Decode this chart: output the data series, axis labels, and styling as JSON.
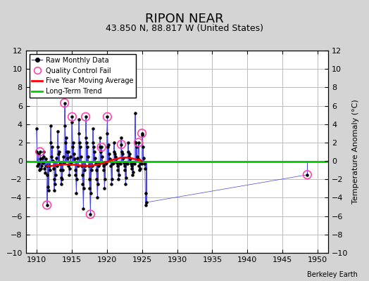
{
  "title": "RIPON NEAR",
  "subtitle": "43.850 N, 88.817 W (United States)",
  "ylabel": "Temperature Anomaly (°C)",
  "xlabel_credit": "Berkeley Earth",
  "xlim": [
    1908.5,
    1951.5
  ],
  "ylim": [
    -10,
    12
  ],
  "yticks": [
    -10,
    -8,
    -6,
    -4,
    -2,
    0,
    2,
    4,
    6,
    8,
    10,
    12
  ],
  "xticks": [
    1910,
    1915,
    1920,
    1925,
    1930,
    1935,
    1940,
    1945,
    1950
  ],
  "bg_color": "#d4d4d4",
  "plot_bg_color": "#ffffff",
  "grid_color": "#bbbbbb",
  "raw_line_color": "#4444dd",
  "raw_marker_color": "#000000",
  "qc_fail_color": "#ff44aa",
  "moving_avg_color": "#ff0000",
  "trend_color": "#00cc00",
  "raw_data": [
    [
      1910.0,
      3.5
    ],
    [
      1910.08,
      1.0
    ],
    [
      1910.17,
      -0.5
    ],
    [
      1910.25,
      0.8
    ],
    [
      1910.33,
      -0.3
    ],
    [
      1910.42,
      -1.0
    ],
    [
      1910.5,
      1.0
    ],
    [
      1910.58,
      0.2
    ],
    [
      1910.67,
      -0.8
    ],
    [
      1910.75,
      -0.5
    ],
    [
      1910.83,
      0.3
    ],
    [
      1910.92,
      -0.2
    ],
    [
      1911.0,
      1.0
    ],
    [
      1911.08,
      0.5
    ],
    [
      1911.17,
      -0.8
    ],
    [
      1911.25,
      -1.3
    ],
    [
      1911.33,
      0.2
    ],
    [
      1911.42,
      -0.5
    ],
    [
      1911.5,
      -4.8
    ],
    [
      1911.58,
      -1.5
    ],
    [
      1911.67,
      -2.8
    ],
    [
      1911.75,
      -3.2
    ],
    [
      1911.83,
      -0.5
    ],
    [
      1911.92,
      -1.0
    ],
    [
      1912.0,
      3.8
    ],
    [
      1912.08,
      2.0
    ],
    [
      1912.17,
      0.5
    ],
    [
      1912.25,
      1.5
    ],
    [
      1912.33,
      0.0
    ],
    [
      1912.42,
      -0.8
    ],
    [
      1912.5,
      -3.2
    ],
    [
      1912.58,
      -2.0
    ],
    [
      1912.67,
      -2.5
    ],
    [
      1912.75,
      -1.5
    ],
    [
      1912.83,
      0.3
    ],
    [
      1912.92,
      -0.5
    ],
    [
      1913.0,
      3.2
    ],
    [
      1913.08,
      1.5
    ],
    [
      1913.17,
      0.8
    ],
    [
      1913.25,
      1.0
    ],
    [
      1913.33,
      -0.3
    ],
    [
      1913.42,
      -1.0
    ],
    [
      1913.5,
      -2.5
    ],
    [
      1913.58,
      -1.8
    ],
    [
      1913.67,
      -2.0
    ],
    [
      1913.75,
      -1.0
    ],
    [
      1913.83,
      0.5
    ],
    [
      1913.92,
      -0.2
    ],
    [
      1914.0,
      6.3
    ],
    [
      1914.08,
      3.8
    ],
    [
      1914.17,
      2.0
    ],
    [
      1914.25,
      2.5
    ],
    [
      1914.33,
      1.0
    ],
    [
      1914.42,
      0.3
    ],
    [
      1914.5,
      1.0
    ],
    [
      1914.58,
      -0.5
    ],
    [
      1914.67,
      -1.5
    ],
    [
      1914.75,
      -0.8
    ],
    [
      1914.83,
      0.5
    ],
    [
      1914.92,
      -0.3
    ],
    [
      1915.0,
      4.2
    ],
    [
      1915.08,
      4.8
    ],
    [
      1915.17,
      1.5
    ],
    [
      1915.25,
      2.0
    ],
    [
      1915.33,
      0.8
    ],
    [
      1915.42,
      0.2
    ],
    [
      1915.5,
      -1.0
    ],
    [
      1915.58,
      -1.5
    ],
    [
      1915.67,
      -3.5
    ],
    [
      1915.75,
      -2.0
    ],
    [
      1915.83,
      0.3
    ],
    [
      1915.92,
      -0.5
    ],
    [
      1916.0,
      4.5
    ],
    [
      1916.08,
      3.0
    ],
    [
      1916.17,
      2.0
    ],
    [
      1916.25,
      1.5
    ],
    [
      1916.33,
      0.5
    ],
    [
      1916.42,
      -0.5
    ],
    [
      1916.5,
      -1.5
    ],
    [
      1916.58,
      -2.5
    ],
    [
      1916.67,
      -5.2
    ],
    [
      1916.75,
      -3.0
    ],
    [
      1916.83,
      -1.0
    ],
    [
      1916.92,
      -0.5
    ],
    [
      1917.0,
      4.8
    ],
    [
      1917.08,
      2.5
    ],
    [
      1917.17,
      2.0
    ],
    [
      1917.25,
      1.5
    ],
    [
      1917.33,
      0.5
    ],
    [
      1917.42,
      -0.5
    ],
    [
      1917.5,
      -2.0
    ],
    [
      1917.58,
      -3.0
    ],
    [
      1917.67,
      -5.8
    ],
    [
      1917.75,
      -3.5
    ],
    [
      1917.83,
      -1.0
    ],
    [
      1917.92,
      -0.5
    ],
    [
      1918.0,
      3.5
    ],
    [
      1918.08,
      2.0
    ],
    [
      1918.17,
      1.5
    ],
    [
      1918.25,
      1.0
    ],
    [
      1918.33,
      0.3
    ],
    [
      1918.42,
      -0.3
    ],
    [
      1918.5,
      -1.0
    ],
    [
      1918.58,
      -2.0
    ],
    [
      1918.67,
      -4.0
    ],
    [
      1918.75,
      -2.5
    ],
    [
      1918.83,
      -0.5
    ],
    [
      1918.92,
      -0.3
    ],
    [
      1919.0,
      2.5
    ],
    [
      1919.08,
      1.5
    ],
    [
      1919.17,
      1.0
    ],
    [
      1919.25,
      1.5
    ],
    [
      1919.33,
      0.5
    ],
    [
      1919.42,
      -0.2
    ],
    [
      1919.5,
      -0.5
    ],
    [
      1919.58,
      -1.0
    ],
    [
      1919.67,
      -3.0
    ],
    [
      1919.75,
      -2.0
    ],
    [
      1919.83,
      -0.3
    ],
    [
      1919.92,
      -0.2
    ],
    [
      1920.0,
      3.0
    ],
    [
      1920.08,
      4.8
    ],
    [
      1920.17,
      1.5
    ],
    [
      1920.25,
      1.8
    ],
    [
      1920.33,
      0.8
    ],
    [
      1920.42,
      0.2
    ],
    [
      1920.5,
      0.0
    ],
    [
      1920.58,
      -0.5
    ],
    [
      1920.67,
      -2.5
    ],
    [
      1920.75,
      -2.0
    ],
    [
      1920.83,
      -0.3
    ],
    [
      1920.92,
      -0.2
    ],
    [
      1921.0,
      2.0
    ],
    [
      1921.08,
      1.0
    ],
    [
      1921.17,
      0.8
    ],
    [
      1921.25,
      0.5
    ],
    [
      1921.33,
      0.2
    ],
    [
      1921.42,
      -0.2
    ],
    [
      1921.5,
      -0.5
    ],
    [
      1921.58,
      -1.0
    ],
    [
      1921.67,
      -2.0
    ],
    [
      1921.75,
      -1.5
    ],
    [
      1921.83,
      -0.2
    ],
    [
      1921.92,
      -0.3
    ],
    [
      1922.0,
      2.5
    ],
    [
      1922.08,
      1.8
    ],
    [
      1922.17,
      1.0
    ],
    [
      1922.25,
      0.8
    ],
    [
      1922.33,
      0.3
    ],
    [
      1922.42,
      -0.2
    ],
    [
      1922.5,
      -0.5
    ],
    [
      1922.58,
      -1.0
    ],
    [
      1922.67,
      -2.5
    ],
    [
      1922.75,
      -1.8
    ],
    [
      1922.83,
      -0.2
    ],
    [
      1922.92,
      -0.3
    ],
    [
      1923.0,
      2.0
    ],
    [
      1923.08,
      1.0
    ],
    [
      1923.17,
      0.5
    ],
    [
      1923.25,
      0.8
    ],
    [
      1923.33,
      0.2
    ],
    [
      1923.42,
      -0.3
    ],
    [
      1923.5,
      -0.5
    ],
    [
      1923.58,
      -0.8
    ],
    [
      1923.67,
      -1.5
    ],
    [
      1923.75,
      -1.2
    ],
    [
      1923.83,
      -0.2
    ],
    [
      1923.92,
      -0.3
    ],
    [
      1924.0,
      5.2
    ],
    [
      1924.08,
      2.0
    ],
    [
      1924.17,
      2.0
    ],
    [
      1924.25,
      1.5
    ],
    [
      1924.33,
      0.5
    ],
    [
      1924.42,
      0.2
    ],
    [
      1924.5,
      2.0
    ],
    [
      1924.58,
      -0.5
    ],
    [
      1924.67,
      -1.0
    ],
    [
      1924.75,
      -0.8
    ],
    [
      1924.83,
      -0.2
    ],
    [
      1924.92,
      -0.3
    ],
    [
      1925.0,
      3.0
    ],
    [
      1925.08,
      2.8
    ],
    [
      1925.17,
      1.5
    ],
    [
      1925.25,
      0.3
    ],
    [
      1925.33,
      -0.3
    ],
    [
      1925.42,
      -0.8
    ],
    [
      1925.5,
      -4.8
    ],
    [
      1925.58,
      -3.5
    ],
    [
      1925.67,
      -4.5
    ],
    [
      1948.5,
      -1.5
    ]
  ],
  "qc_fail_points": [
    [
      1910.5,
      1.0
    ],
    [
      1911.5,
      -4.8
    ],
    [
      1914.0,
      6.3
    ],
    [
      1915.08,
      4.8
    ],
    [
      1917.0,
      4.8
    ],
    [
      1917.67,
      -5.8
    ],
    [
      1919.25,
      1.5
    ],
    [
      1920.08,
      4.8
    ],
    [
      1922.08,
      1.8
    ],
    [
      1924.5,
      2.0
    ],
    [
      1925.0,
      3.0
    ],
    [
      1948.5,
      -1.5
    ]
  ],
  "moving_avg": [
    [
      1911.5,
      -0.55
    ],
    [
      1912.0,
      -0.55
    ],
    [
      1912.5,
      -0.5
    ],
    [
      1913.0,
      -0.45
    ],
    [
      1913.5,
      -0.4
    ],
    [
      1914.0,
      -0.38
    ],
    [
      1914.5,
      -0.38
    ],
    [
      1915.0,
      -0.4
    ],
    [
      1915.5,
      -0.42
    ],
    [
      1916.0,
      -0.48
    ],
    [
      1916.5,
      -0.5
    ],
    [
      1917.0,
      -0.52
    ],
    [
      1917.5,
      -0.52
    ],
    [
      1918.0,
      -0.5
    ],
    [
      1918.5,
      -0.42
    ],
    [
      1919.0,
      -0.35
    ],
    [
      1919.5,
      -0.25
    ],
    [
      1920.0,
      -0.1
    ],
    [
      1920.5,
      0.05
    ],
    [
      1921.0,
      0.15
    ],
    [
      1921.5,
      0.25
    ],
    [
      1922.0,
      0.35
    ],
    [
      1922.5,
      0.38
    ],
    [
      1923.0,
      0.35
    ],
    [
      1923.5,
      0.3
    ],
    [
      1924.0,
      0.2
    ],
    [
      1924.5,
      0.1
    ],
    [
      1924.6,
      0.15
    ],
    [
      1924.8,
      0.1
    ],
    [
      1925.0,
      -0.05
    ]
  ],
  "trend_x": [
    1908.5,
    1951.5
  ],
  "trend_y": [
    -0.1,
    -0.1
  ]
}
